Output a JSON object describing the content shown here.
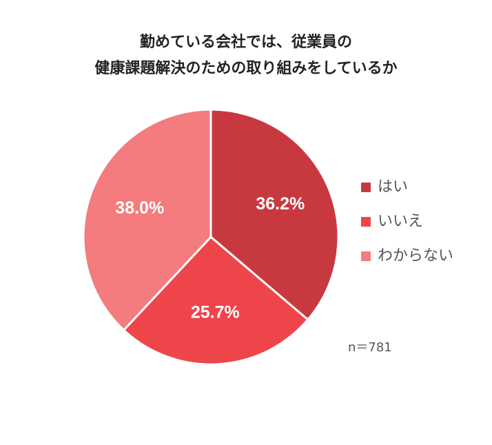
{
  "chart_data": {
    "type": "pie",
    "title": [
      "勤めている会社では、従業員の",
      "健康課題解決のための取り組みをしているか"
    ],
    "categories": [
      "はい",
      "いいえ",
      "わからない"
    ],
    "values": [
      36.2,
      25.7,
      38.0
    ],
    "value_labels": [
      "36.2%",
      "25.7%",
      "38.0%"
    ],
    "colors": [
      "#c8393f",
      "#ee454b",
      "#f47b7e"
    ],
    "legend": "right",
    "note": "n＝781"
  }
}
